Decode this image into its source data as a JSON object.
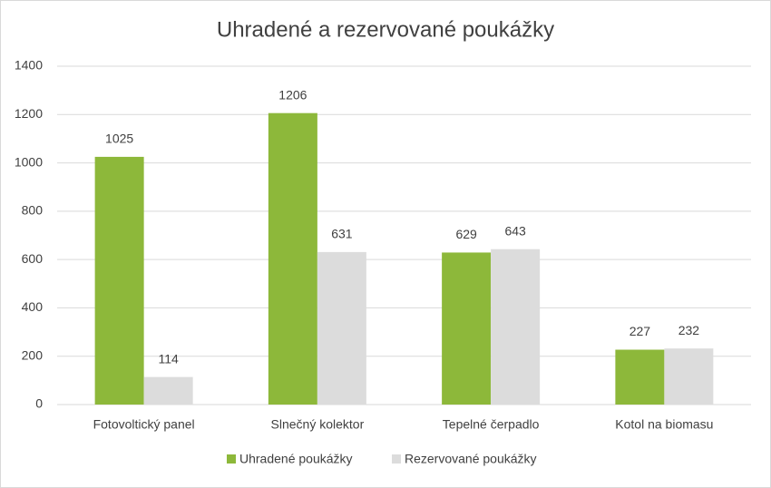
{
  "chart_data": {
    "type": "bar",
    "title": "Uhradené a rezervované poukážky",
    "categories": [
      "Fotovoltický panel",
      "Slnečný kolektor",
      "Tepelné čerpadlo",
      "Kotol na biomasu"
    ],
    "series": [
      {
        "name": "Uhradené poukážky",
        "color": "#8db83a",
        "values": [
          1025,
          1206,
          629,
          227
        ]
      },
      {
        "name": "Rezervované poukážky",
        "color": "#dcdcdc",
        "values": [
          114,
          631,
          643,
          232
        ]
      }
    ],
    "ylim": [
      0,
      1400
    ],
    "yticks": [
      0,
      200,
      400,
      600,
      800,
      1000,
      1200,
      1400
    ],
    "grid": true,
    "legend": "bottom"
  }
}
